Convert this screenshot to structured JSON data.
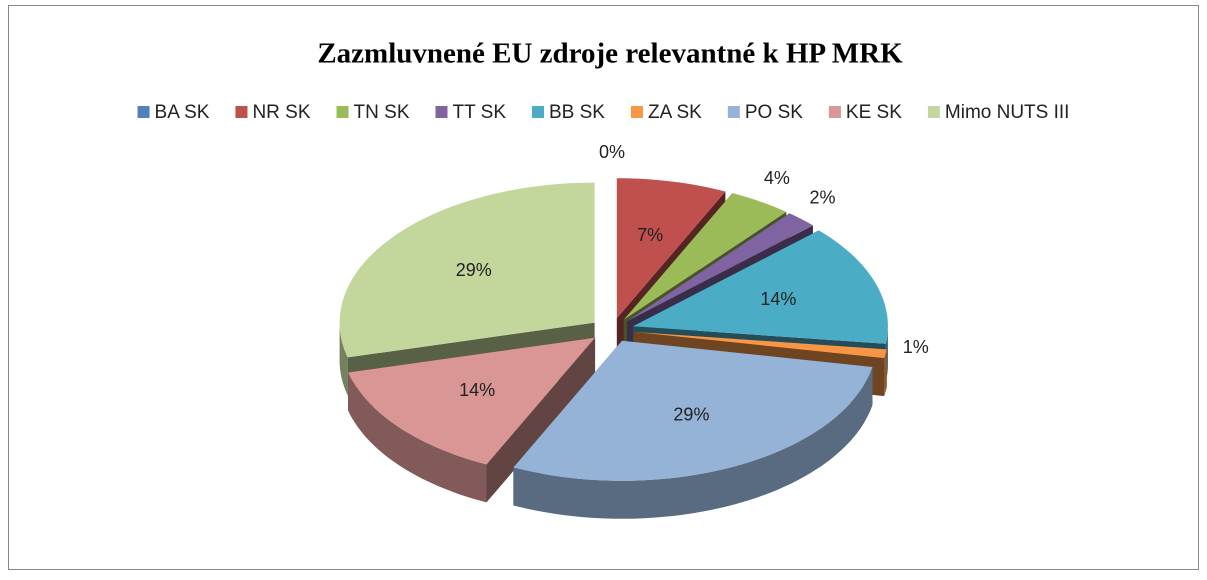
{
  "chart_data": {
    "type": "pie3d",
    "title": "Zazmluvnené EU zdroje relevantné k HP MRK",
    "categories": [
      "BA SK",
      "NR SK",
      "TN SK",
      "TT SK",
      "BB SK",
      "ZA SK",
      "PO SK",
      "KE SK",
      "Mimo NUTS III"
    ],
    "values": [
      0,
      7,
      4,
      2,
      14,
      1,
      29,
      14,
      29
    ],
    "value_labels": [
      "0%",
      "7%",
      "4%",
      "2%",
      "14%",
      "1%",
      "29%",
      "14%",
      "29%"
    ],
    "colors": [
      "#4f81bd",
      "#c0504d",
      "#9bbb59",
      "#8064a2",
      "#4bacc6",
      "#f79646",
      "#95b3d7",
      "#d99694",
      "#c3d69b"
    ],
    "legend": "top"
  }
}
